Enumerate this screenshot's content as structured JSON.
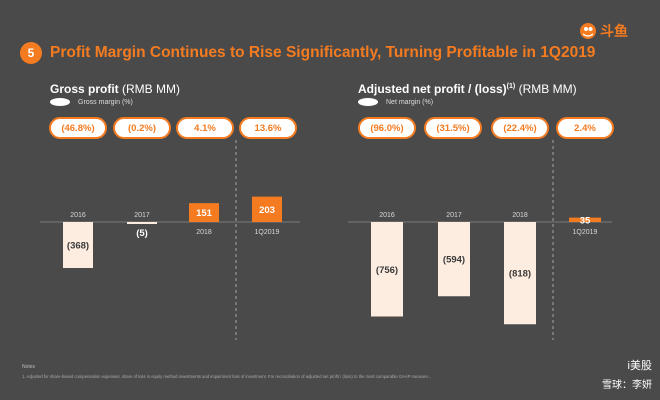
{
  "header": {
    "section_number": "5",
    "title": "Profit Margin Continues to Rise Significantly, Turning Profitable in 1Q2019",
    "logo_text": "斗鱼"
  },
  "colors": {
    "background": "#4a4a4a",
    "accent": "#f47b20",
    "negative_bar": "#fdece0",
    "text": "#ffffff"
  },
  "chart_data": [
    {
      "type": "bar",
      "title": "Gross profit",
      "unit": "(RMB MM)",
      "legend": "Gross margin (%)",
      "categories": [
        "2016",
        "2017",
        "2018",
        "1Q2019"
      ],
      "values": [
        -368,
        -5,
        151,
        203
      ],
      "value_labels": [
        "(368)",
        "(5)",
        "151",
        "203"
      ],
      "margins": [
        "(46.8%)",
        "(0.2%)",
        "4.1%",
        "13.6%"
      ],
      "ylim": [
        -400,
        250
      ]
    },
    {
      "type": "bar",
      "title": "Adjusted net profit / (loss)",
      "title_sup": "(1)",
      "unit": "(RMB MM)",
      "legend": "Net margin (%)",
      "categories": [
        "2016",
        "2017",
        "2018",
        "1Q2019"
      ],
      "values": [
        -756,
        -594,
        -818,
        35
      ],
      "value_labels": [
        "(756)",
        "(594)",
        "(818)",
        "35"
      ],
      "margins": [
        "(96.0%)",
        "(31.5%)",
        "(22.4%)",
        "2.4%"
      ],
      "ylim": [
        -850,
        100
      ]
    }
  ],
  "notes": {
    "label": "Notes",
    "text": "1.    Adjusted for share-based compensation expenses, share of loss in equity method investments and impairment loss of investment. For reconciliation of adjusted net profit / (loss) to the most comparable GAAP measure..."
  },
  "watermark": {
    "line1": "i美股",
    "line2": "雪球：李妍"
  }
}
